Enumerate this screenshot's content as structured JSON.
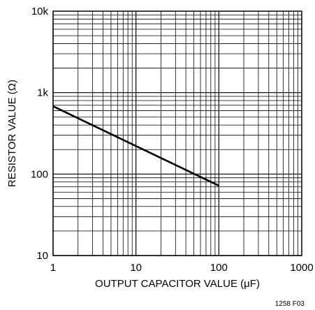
{
  "chart_data": {
    "type": "line",
    "xlabel": "OUTPUT CAPACITOR VALUE (μF)",
    "ylabel": "RESISTOR VALUE (Ω)",
    "xscale": "log",
    "yscale": "log",
    "xlim": [
      1,
      1000
    ],
    "ylim": [
      10,
      10000
    ],
    "grid": true,
    "x_ticks": [
      1,
      10,
      100,
      1000
    ],
    "x_tick_labels": [
      "1",
      "10",
      "100",
      "1000"
    ],
    "y_ticks": [
      10,
      100,
      1000,
      10000
    ],
    "y_tick_labels": [
      "10",
      "100",
      "1k",
      "10k"
    ],
    "series": [
      {
        "x": [
          1,
          100
        ],
        "y": [
          680,
          72
        ]
      }
    ],
    "line_color": "#000000"
  },
  "figure_id": "1258 F03"
}
